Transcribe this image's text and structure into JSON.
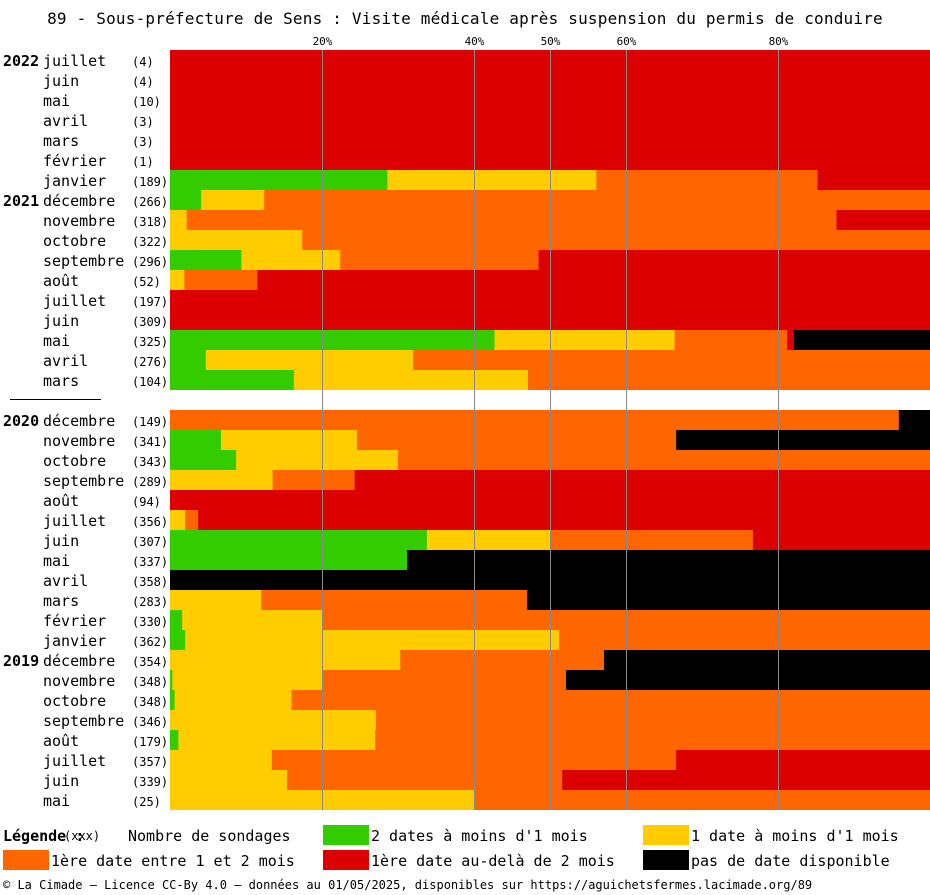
{
  "title": "89 - Sous-préfecture de Sens : Visite médicale après suspension du permis de conduire",
  "legend": {
    "title": "Légende :",
    "count_marker": "(xxx)",
    "count_label": "Nombre de sondages",
    "items": [
      {
        "key": "g2",
        "label": "2 dates à moins d'1 mois",
        "color": "#33cc00"
      },
      {
        "key": "y1",
        "label": "1 date à moins d'1 mois",
        "color": "#ffcc00"
      },
      {
        "key": "o",
        "label": "1ère date entre 1 et 2 mois",
        "color": "#ff6600"
      },
      {
        "key": "r",
        "label": "1ère date au-delà de 2 mois",
        "color": "#dd0000"
      },
      {
        "key": "k",
        "label": "pas de date disponible",
        "color": "#000000"
      }
    ]
  },
  "footer": "© La Cimade – Licence CC-By 4.0 – données au 01/05/2025, disponibles sur https://aguichetsfermes.lacimade.org/89",
  "chart_data": {
    "type": "bar",
    "orientation": "horizontal",
    "stacked": "100%",
    "x_unit": "%",
    "xlim": [
      0,
      100
    ],
    "x_ticks": [
      {
        "value": 20,
        "label": "20%"
      },
      {
        "value": 40,
        "label": "40%"
      },
      {
        "value": 50,
        "label": "50%"
      },
      {
        "value": 60,
        "label": "60%"
      },
      {
        "value": 80,
        "label": "80%"
      }
    ],
    "series_keys": [
      "g2",
      "y1",
      "o",
      "r",
      "k"
    ],
    "rows": [
      {
        "year": "2022",
        "month": "juillet",
        "count": "(4)",
        "values": [
          0,
          0,
          0,
          100,
          0
        ]
      },
      {
        "year": "",
        "month": "juin",
        "count": "(4)",
        "values": [
          0,
          0,
          0,
          100,
          0
        ]
      },
      {
        "year": "",
        "month": "mai",
        "count": "(10)",
        "values": [
          0,
          0,
          0,
          100,
          0
        ]
      },
      {
        "year": "",
        "month": "avril",
        "count": "(3)",
        "values": [
          0,
          0,
          0,
          100,
          0
        ]
      },
      {
        "year": "",
        "month": "mars",
        "count": "(3)",
        "values": [
          0,
          0,
          0,
          100,
          0
        ]
      },
      {
        "year": "",
        "month": "février",
        "count": "(1)",
        "values": [
          0,
          0,
          0,
          100,
          0
        ]
      },
      {
        "year": "",
        "month": "janvier",
        "count": "(189)",
        "values": [
          28.6,
          27.5,
          29.1,
          14.8,
          0
        ]
      },
      {
        "year": "2021",
        "month": "décembre",
        "count": "(266)",
        "values": [
          4.1,
          8.3,
          87.6,
          0,
          0
        ]
      },
      {
        "year": "",
        "month": "novembre",
        "count": "(318)",
        "values": [
          0,
          2.2,
          85.5,
          12.3,
          0
        ]
      },
      {
        "year": "",
        "month": "octobre",
        "count": "(322)",
        "values": [
          0,
          17.4,
          82.6,
          0,
          0
        ]
      },
      {
        "year": "",
        "month": "septembre",
        "count": "(296)",
        "values": [
          9.4,
          13.0,
          26.1,
          51.5,
          0
        ]
      },
      {
        "year": "",
        "month": "août",
        "count": "(52)",
        "values": [
          0,
          1.9,
          9.6,
          88.5,
          0
        ]
      },
      {
        "year": "",
        "month": "juillet",
        "count": "(197)",
        "values": [
          0,
          0,
          0,
          100,
          0
        ]
      },
      {
        "year": "",
        "month": "juin",
        "count": "(309)",
        "values": [
          0,
          0,
          0,
          100,
          0
        ]
      },
      {
        "year": "",
        "month": "mai",
        "count": "(325)",
        "values": [
          42.7,
          23.7,
          14.8,
          0.9,
          17.9
        ]
      },
      {
        "year": "",
        "month": "avril",
        "count": "(276)",
        "values": [
          4.7,
          27.3,
          68.0,
          0,
          0
        ]
      },
      {
        "year": "",
        "month": "mars",
        "count": "(104)",
        "values": [
          16.3,
          30.8,
          52.9,
          0,
          0
        ]
      },
      {
        "year": "2020",
        "month": "décembre",
        "count": "(149)",
        "values": [
          0,
          0,
          95.9,
          0,
          4.1
        ]
      },
      {
        "year": "",
        "month": "novembre",
        "count": "(341)",
        "values": [
          6.7,
          17.9,
          42.0,
          0,
          33.4
        ]
      },
      {
        "year": "",
        "month": "octobre",
        "count": "(343)",
        "values": [
          8.7,
          21.3,
          70.0,
          0,
          0
        ]
      },
      {
        "year": "",
        "month": "septembre",
        "count": "(289)",
        "values": [
          0,
          13.5,
          10.8,
          75.7,
          0
        ]
      },
      {
        "year": "",
        "month": "août",
        "count": "(94)",
        "values": [
          0,
          0,
          0,
          100,
          0
        ]
      },
      {
        "year": "",
        "month": "juillet",
        "count": "(356)",
        "values": [
          0,
          2.0,
          1.7,
          96.3,
          0
        ]
      },
      {
        "year": "",
        "month": "juin",
        "count": "(307)",
        "values": [
          33.8,
          16.2,
          26.7,
          23.3,
          0
        ]
      },
      {
        "year": "",
        "month": "mai",
        "count": "(337)",
        "values": [
          31.2,
          0,
          0,
          0,
          68.8
        ]
      },
      {
        "year": "",
        "month": "avril",
        "count": "(358)",
        "values": [
          0,
          0,
          0,
          0,
          100
        ]
      },
      {
        "year": "",
        "month": "mars",
        "count": "(283)",
        "values": [
          0,
          12.0,
          35.0,
          0,
          53.0
        ]
      },
      {
        "year": "",
        "month": "février",
        "count": "(330)",
        "values": [
          1.6,
          18.4,
          80.0,
          0,
          0
        ]
      },
      {
        "year": "",
        "month": "janvier",
        "count": "(362)",
        "values": [
          2.0,
          49.2,
          48.8,
          0,
          0
        ]
      },
      {
        "year": "2019",
        "month": "décembre",
        "count": "(354)",
        "values": [
          0,
          30.3,
          26.8,
          0,
          42.9
        ]
      },
      {
        "year": "",
        "month": "novembre",
        "count": "(348)",
        "values": [
          0.3,
          19.7,
          32.1,
          0,
          47.9
        ]
      },
      {
        "year": "",
        "month": "octobre",
        "count": "(348)",
        "values": [
          0.6,
          15.4,
          84.0,
          0,
          0
        ]
      },
      {
        "year": "",
        "month": "septembre",
        "count": "(346)",
        "values": [
          0,
          27.1,
          72.9,
          0,
          0
        ]
      },
      {
        "year": "",
        "month": "août",
        "count": "(179)",
        "values": [
          1.1,
          25.9,
          73.0,
          0,
          0
        ]
      },
      {
        "year": "",
        "month": "juillet",
        "count": "(357)",
        "values": [
          0,
          13.4,
          53.2,
          33.4,
          0
        ]
      },
      {
        "year": "",
        "month": "juin",
        "count": "(339)",
        "values": [
          0,
          15.4,
          36.2,
          48.4,
          0
        ]
      },
      {
        "year": "",
        "month": "mai",
        "count": "(25)",
        "values": [
          0,
          40.0,
          60.0,
          0,
          0
        ]
      }
    ]
  }
}
